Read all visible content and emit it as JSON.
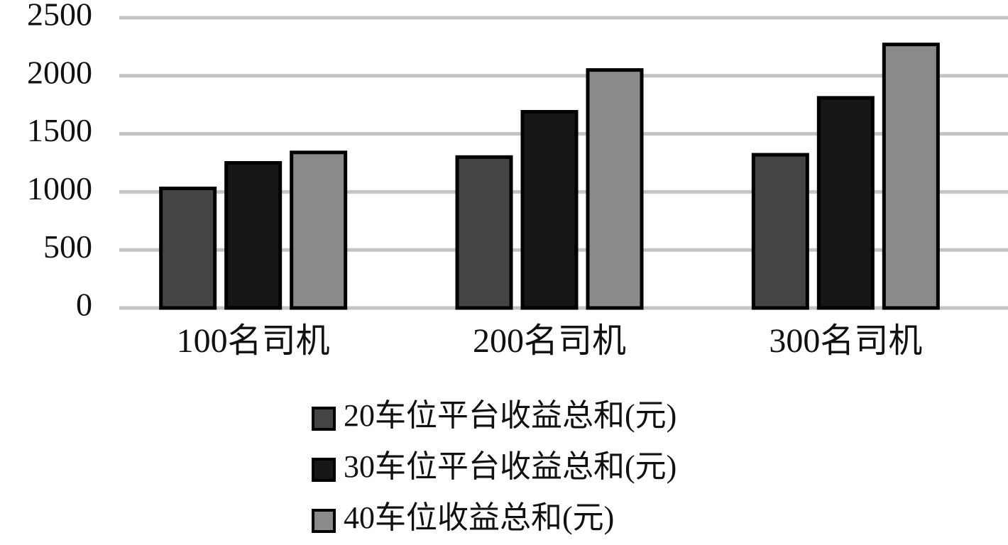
{
  "chart_data": {
    "type": "bar",
    "categories": [
      "100名司机",
      "200名司机",
      "300名司机"
    ],
    "series": [
      {
        "name": "20车位平台收益总和(元)",
        "color": "#444444",
        "values": [
          1030,
          1300,
          1320
        ]
      },
      {
        "name": "30车位平台收益总和(元)",
        "color": "#161616",
        "values": [
          1250,
          1690,
          1810
        ]
      },
      {
        "name": "40车位收益总和(元)",
        "color": "#8a8a8a",
        "values": [
          1340,
          2050,
          2270
        ]
      }
    ],
    "ylim": [
      0,
      2500
    ],
    "yticks": [
      0,
      500,
      1000,
      1500,
      2000,
      2500
    ],
    "grid": true,
    "legend": "bottom"
  }
}
